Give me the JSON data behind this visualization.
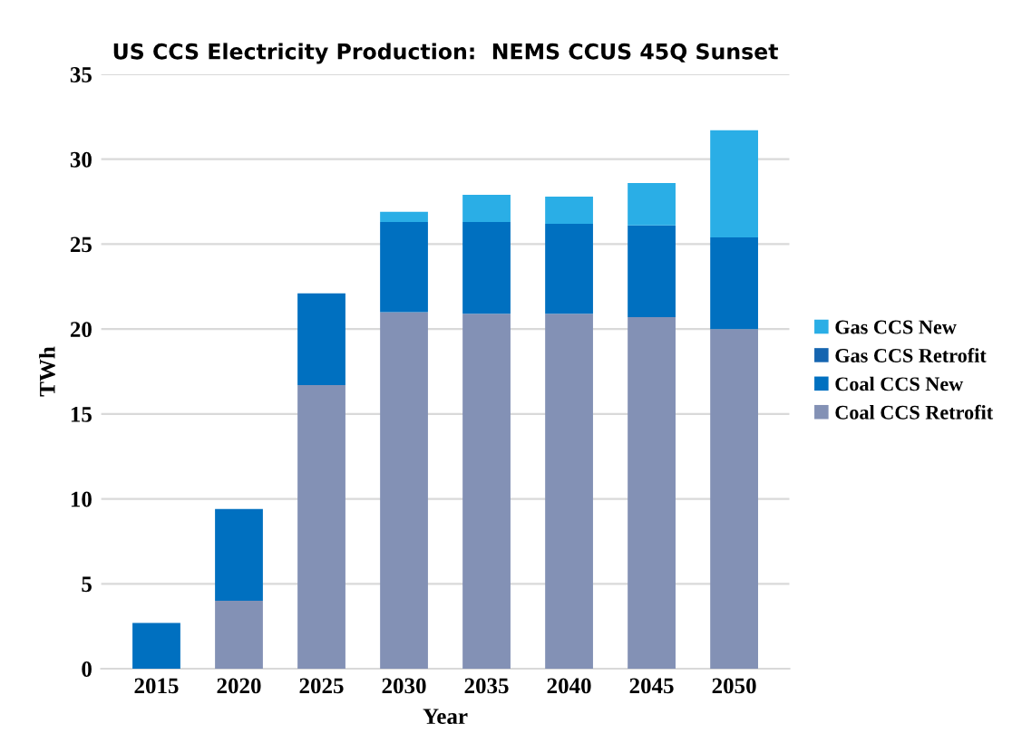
{
  "chart_data": {
    "type": "bar",
    "title": "US CCS Electricity Production:  NEMS CCUS 45Q Sunset",
    "xlabel": "Year",
    "ylabel": "TWh",
    "categories": [
      "2015",
      "2020",
      "2025",
      "2030",
      "2035",
      "2040",
      "2045",
      "2050"
    ],
    "stacked": true,
    "ylim": [
      0,
      35
    ],
    "yticks": [
      0,
      5,
      10,
      15,
      20,
      25,
      30,
      35
    ],
    "grid": "y",
    "legend": "right",
    "series": [
      {
        "name": "Coal CCS Retrofit",
        "color": "#8391b5",
        "values": [
          0,
          4.0,
          16.7,
          21.0,
          20.9,
          20.9,
          20.7,
          20.0
        ]
      },
      {
        "name": "Coal CCS New",
        "color": "#0070c0",
        "values": [
          2.7,
          5.4,
          5.4,
          5.3,
          5.4,
          5.3,
          5.4,
          5.4
        ]
      },
      {
        "name": "Gas CCS Retrofit",
        "color": "#1565b0",
        "values": [
          0,
          0,
          0,
          0,
          0,
          0,
          0,
          0
        ]
      },
      {
        "name": "Gas CCS New",
        "color": "#2aaee6",
        "values": [
          0,
          0,
          0,
          0.6,
          1.6,
          1.6,
          2.5,
          6.3
        ]
      }
    ]
  }
}
